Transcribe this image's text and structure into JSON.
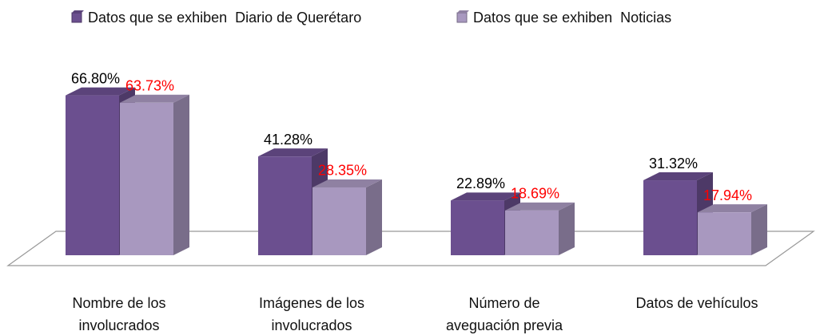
{
  "chart_data": {
    "type": "bar3d",
    "categories": [
      "Nombre de los involucrados",
      "Imágenes de los involucrados",
      "Número de aveguación previa",
      "Datos de vehículos"
    ],
    "series": [
      {
        "name": "Datos que se exhiben  Diario de Querétaro",
        "color": "#6b4f8f",
        "label_color": "#000000",
        "values": [
          66.8,
          41.28,
          22.89,
          31.32
        ],
        "value_labels": [
          "66.80%",
          "41.28%",
          "22.89%",
          "31.32%"
        ]
      },
      {
        "name": "Datos que se exhiben  Noticias",
        "color": "#a898bf",
        "label_color": "#ff0000",
        "values": [
          63.73,
          28.35,
          18.69,
          17.94
        ],
        "value_labels": [
          "63.73%",
          "28.35%",
          "18.69%",
          "17.94%"
        ]
      }
    ],
    "legend": "top"
  }
}
